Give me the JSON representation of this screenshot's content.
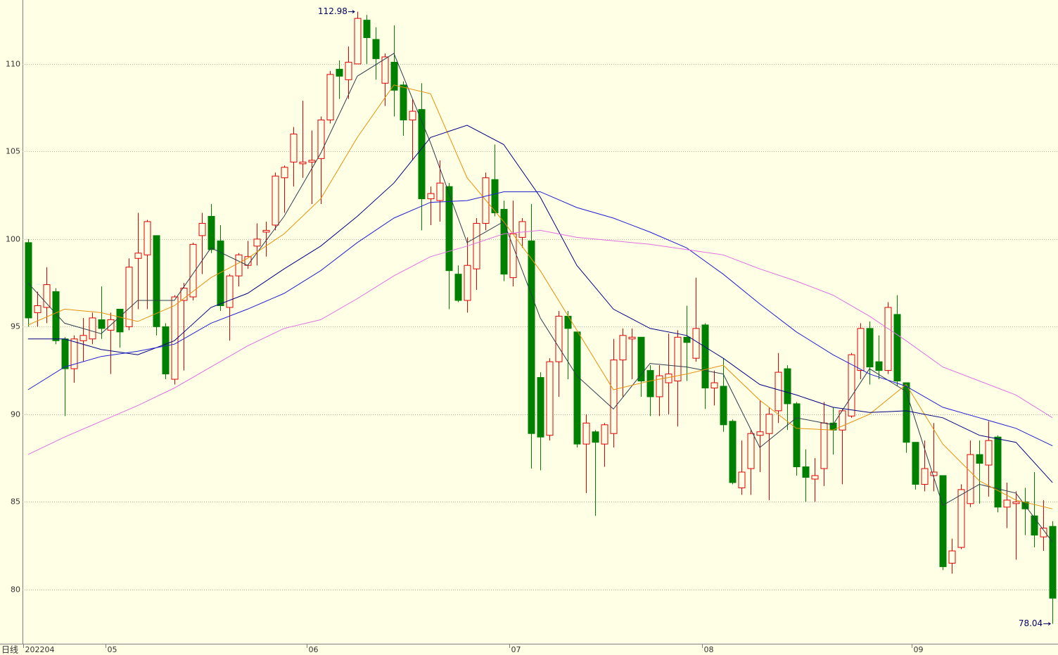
{
  "chart_data": {
    "type": "candlestick",
    "period_label": "日线",
    "open": [
      99.8,
      95.8,
      96.1,
      97,
      94.3,
      92.6,
      94.2,
      94.3,
      95.4,
      94.8,
      96,
      95,
      98.9,
      99.1,
      100.2,
      95,
      92,
      96.5,
      96.7,
      100.2,
      101.3,
      99.9,
      96.1,
      97.9,
      98.5,
      99.6,
      100.4,
      100.8,
      103.5,
      104.4,
      104.3,
      104.4,
      104.6,
      106.8,
      109.7,
      109.1,
      110,
      112.5,
      111.4,
      108.9,
      110.1,
      108.8,
      106.8,
      107.4,
      102.3,
      102.2,
      103,
      98,
      96.5,
      98.3,
      100.9,
      103.4,
      101.7,
      97.8,
      100.1,
      99.9,
      92.1,
      88.8,
      93,
      95.6,
      94.7,
      88.3,
      89,
      88.3,
      88.9,
      93.1,
      94.3,
      94.4,
      92.5,
      91,
      91.8,
      91.9,
      94.4,
      93.2,
      95.1,
      91.5,
      91.6,
      89.6,
      85.8,
      86.9,
      88.8,
      88.9,
      90.2,
      92.6,
      90.6,
      87,
      86.3,
      86.9,
      89.5,
      89.1,
      89.9,
      92.5,
      94.9,
      93,
      92.5,
      95.7,
      91.8,
      88.4,
      86,
      86.5,
      86.5,
      81.5,
      82.4,
      84.9,
      87.7,
      87.1,
      88.7,
      84.7,
      84.9,
      85,
      84.2,
      83,
      83.6
    ],
    "high": [
      100,
      97,
      98.4,
      97.2,
      94.4,
      94.5,
      95.5,
      95.8,
      97.3,
      95.8,
      96,
      98.9,
      101.5,
      101.1,
      100.2,
      95.2,
      96.8,
      97.5,
      99.8,
      101.5,
      102,
      100.8,
      98,
      99.2,
      99.9,
      100.9,
      101,
      103.8,
      104.2,
      106.4,
      107.9,
      106.2,
      107,
      109.6,
      110.2,
      111,
      112.98,
      112.8,
      112.1,
      110.6,
      112.2,
      109,
      108,
      108.9,
      103,
      104.5,
      103.2,
      98.5,
      100.1,
      101.2,
      103.8,
      105.4,
      102.2,
      102.2,
      101.2,
      102,
      92.4,
      93.2,
      95.9,
      95.9,
      94.7,
      90,
      89.1,
      89.5,
      94.3,
      94.9,
      94.9,
      94.4,
      92.8,
      92.8,
      94.6,
      94.8,
      96.2,
      97.8,
      95.2,
      92.5,
      93.2,
      89.7,
      88.5,
      89.1,
      90.8,
      90.4,
      93.5,
      92.8,
      90.7,
      88,
      87.5,
      90.7,
      90.4,
      90.3,
      93.5,
      95.2,
      95.3,
      94.5,
      96.4,
      96.8,
      91.8,
      88.4,
      88.5,
      89.5,
      86.5,
      82.9,
      86,
      88.5,
      88.5,
      89.6,
      88.8,
      86.1,
      85.6,
      85.8,
      86.7,
      85.1,
      83.9
    ],
    "low": [
      95,
      95,
      95.2,
      94,
      89.9,
      91.8,
      93,
      94,
      94.3,
      92.3,
      93.8,
      94.8,
      96,
      96,
      94.5,
      92,
      91.7,
      92.5,
      96.5,
      98,
      99.2,
      95.9,
      94.2,
      97.3,
      98.3,
      98.5,
      99,
      100.5,
      101.5,
      103,
      103.5,
      102,
      102,
      106.6,
      108,
      108,
      110,
      110,
      109.1,
      107.6,
      107,
      105.9,
      104.5,
      100.5,
      100.8,
      101,
      96,
      96.4,
      95.8,
      97.1,
      100.5,
      101.3,
      97.6,
      97.3,
      99.5,
      86.9,
      86.8,
      88.5,
      91,
      92,
      88.1,
      85.5,
      84.2,
      87,
      88.1,
      91,
      92,
      91,
      89.9,
      89.9,
      90,
      89.3,
      91.9,
      93,
      90.3,
      90.5,
      89,
      86,
      85.4,
      85.4,
      86.7,
      85.1,
      89.5,
      89.1,
      86.5,
      85,
      85,
      85.9,
      87.7,
      86,
      89.8,
      92,
      91.7,
      92,
      92.3,
      91.6,
      87.8,
      85.7,
      85.6,
      85.6,
      81.1,
      80.9,
      82.3,
      84.7,
      84.9,
      85.3,
      84.4,
      83.5,
      81.7,
      83.1,
      82.4,
      82.2,
      78.04
    ],
    "close": [
      95.5,
      96.2,
      97.4,
      94.2,
      92.6,
      94.3,
      94.5,
      95.5,
      94.9,
      95.4,
      94.7,
      98.4,
      99.2,
      101,
      95,
      92.3,
      96.7,
      97.2,
      99.7,
      100.9,
      99.4,
      96.2,
      97.9,
      99.1,
      99,
      100,
      100.5,
      103.6,
      104.1,
      106,
      104.4,
      104.5,
      106.8,
      109.4,
      109.3,
      110.1,
      112.6,
      111.5,
      110.3,
      110.4,
      108.5,
      106.8,
      107.3,
      102.3,
      102.6,
      103.2,
      98.2,
      96.5,
      98.5,
      100.9,
      103.5,
      101.5,
      98,
      100.3,
      101,
      88.9,
      88.7,
      93,
      95.6,
      94.9,
      88.3,
      89.5,
      88.4,
      89.4,
      93.1,
      94.5,
      94.4,
      91.9,
      91,
      92.2,
      92.3,
      94.4,
      94.1,
      94.9,
      91.5,
      91.8,
      89.4,
      86.1,
      86.7,
      88.9,
      89,
      90,
      92.4,
      90.6,
      87,
      86.4,
      86.5,
      89.5,
      89.1,
      90.2,
      93.4,
      94.9,
      92.7,
      92.5,
      96.1,
      91.9,
      88.4,
      86,
      86.9,
      86.7,
      81.3,
      82.2,
      85.7,
      87.7,
      87.2,
      88.5,
      84.7,
      85.1,
      85,
      84.6,
      83.1,
      83.5,
      79.5
    ],
    "up_color": "#e00000",
    "down_color": "#008000",
    "series": [
      {
        "color": "#2e3d4f",
        "x": [
          0,
          4,
          8,
          12,
          16,
          20,
          24,
          28,
          32,
          36,
          40,
          44,
          48,
          52,
          56,
          60,
          64,
          68,
          72,
          76,
          80,
          84,
          88,
          92,
          96,
          100,
          104,
          108,
          112
        ],
        "values": [
          97.5,
          95.2,
          94.6,
          96.5,
          96.5,
          99.5,
          98.5,
          101.3,
          104.9,
          109.3,
          110.6,
          105.5,
          99.8,
          101,
          95.5,
          92.2,
          90.3,
          92.9,
          92.7,
          92.3,
          88.1,
          89.8,
          89.4,
          92.6,
          91.3,
          84.8,
          86,
          85.5,
          82.7
        ]
      },
      {
        "color": "#e8900a",
        "x": [
          0,
          4,
          8,
          12,
          16,
          20,
          24,
          28,
          32,
          36,
          40,
          44,
          48,
          52,
          56,
          60,
          64,
          68,
          72,
          76,
          80,
          84,
          88,
          92,
          96,
          100,
          104,
          108,
          112
        ],
        "values": [
          95.1,
          96,
          95.8,
          95.3,
          96.2,
          97.8,
          98.9,
          100.3,
          102.3,
          105.8,
          108.8,
          108.3,
          103.5,
          101,
          98.2,
          94.8,
          91.4,
          91.9,
          92.3,
          92.8,
          90.8,
          89.2,
          89.1,
          90,
          91.7,
          88.3,
          86.2,
          85.1,
          84.6
        ]
      },
      {
        "color": "#000080",
        "x": [
          0,
          4,
          8,
          12,
          16,
          20,
          24,
          28,
          32,
          36,
          40,
          44,
          48,
          52,
          56,
          60,
          64,
          68,
          72,
          76,
          80,
          84,
          88,
          92,
          96,
          100,
          104,
          108,
          112
        ],
        "values": [
          94.3,
          94.3,
          93.7,
          93.4,
          94.2,
          96.1,
          96.9,
          98.3,
          99.6,
          101.3,
          103.2,
          105.8,
          106.5,
          105.4,
          102.4,
          98.5,
          96,
          94.9,
          94.5,
          93.2,
          91.7,
          91.1,
          90.4,
          90.1,
          90.2,
          89.8,
          88.8,
          88.4,
          86.1
        ]
      },
      {
        "color": "#1f1fd0",
        "x": [
          0,
          4,
          8,
          12,
          16,
          20,
          24,
          28,
          32,
          36,
          40,
          44,
          48,
          52,
          56,
          60,
          64,
          68,
          72,
          76,
          80,
          84,
          88,
          92,
          96,
          100,
          104,
          108,
          112
        ],
        "values": [
          91.4,
          92.7,
          93.3,
          93.6,
          94,
          95.2,
          96,
          96.9,
          98.2,
          99.8,
          101.2,
          102.1,
          102.2,
          102.7,
          102.7,
          101.8,
          101.2,
          100.4,
          99.5,
          98,
          96.3,
          94.7,
          93.4,
          92.3,
          91.6,
          90.4,
          89.8,
          89.2,
          88.2
        ]
      },
      {
        "color": "#e070e0",
        "x": [
          0,
          4,
          8,
          12,
          16,
          20,
          24,
          28,
          32,
          36,
          40,
          44,
          48,
          52,
          56,
          60,
          64,
          68,
          72,
          76,
          80,
          84,
          88,
          92,
          96,
          100,
          104,
          108,
          112
        ],
        "values": [
          87.7,
          88.7,
          89.6,
          90.5,
          91.5,
          92.7,
          93.9,
          94.9,
          95.4,
          96.6,
          97.9,
          99,
          99.6,
          100.3,
          100.5,
          100.1,
          99.9,
          99.7,
          99.4,
          99.1,
          98.3,
          97.6,
          96.8,
          95.6,
          94.2,
          92.7,
          91.9,
          91.1,
          89.8
        ]
      }
    ],
    "xlim": [
      -0.6,
      112.6
    ],
    "xticks": [
      {
        "value": -0.5,
        "label": "202204"
      },
      {
        "value": 8.5,
        "label": "05"
      },
      {
        "value": 30.5,
        "label": "06"
      },
      {
        "value": 52.6,
        "label": "07"
      },
      {
        "value": 73.7,
        "label": "08"
      },
      {
        "value": 96.6,
        "label": "09"
      }
    ],
    "ylim": [
      76.9,
      113.65
    ],
    "yticks": [
      80,
      85,
      90,
      95,
      100,
      105,
      110
    ],
    "grid": true,
    "max_mark": 36,
    "min_mark": 112
  }
}
